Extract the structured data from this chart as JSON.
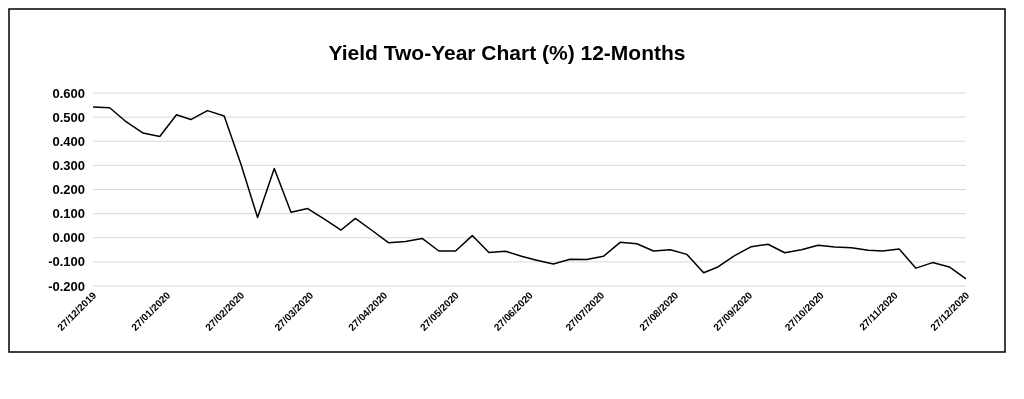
{
  "chart_data": {
    "type": "line",
    "title": "Yield Two-Year Chart (%) 12-Months",
    "x": [
      "2019-12-27",
      "2020-01-03",
      "2020-01-10",
      "2020-01-17",
      "2020-01-24",
      "2020-01-31",
      "2020-02-06",
      "2020-02-13",
      "2020-02-20",
      "2020-02-27",
      "2020-03-05",
      "2020-03-12",
      "2020-03-19",
      "2020-03-26",
      "2020-04-02",
      "2020-04-09",
      "2020-04-15",
      "2020-04-22",
      "2020-04-29",
      "2020-05-06",
      "2020-05-13",
      "2020-05-20",
      "2020-05-27",
      "2020-06-03",
      "2020-06-10",
      "2020-06-17",
      "2020-06-24",
      "2020-06-30",
      "2020-07-07",
      "2020-07-14",
      "2020-07-21",
      "2020-07-28",
      "2020-08-04",
      "2020-08-11",
      "2020-08-18",
      "2020-08-25",
      "2020-09-01",
      "2020-09-08",
      "2020-09-14",
      "2020-09-21",
      "2020-09-28",
      "2020-10-05",
      "2020-10-12",
      "2020-10-19",
      "2020-10-26",
      "2020-11-02",
      "2020-11-09",
      "2020-11-16",
      "2020-11-22",
      "2020-11-29",
      "2020-12-06",
      "2020-12-13",
      "2020-12-20",
      "2020-12-27"
    ],
    "series": [
      {
        "color": "#000000",
        "values": [
          0.542,
          0.539,
          0.48,
          0.434,
          0.42,
          0.51,
          0.49,
          0.527,
          0.505,
          0.306,
          0.084,
          0.287,
          0.106,
          0.121,
          0.077,
          0.032,
          0.08,
          0.03,
          -0.021,
          -0.016,
          -0.003,
          -0.055,
          -0.055,
          0.009,
          -0.061,
          -0.056,
          -0.078,
          -0.093,
          -0.109,
          -0.089,
          -0.09,
          -0.077,
          -0.019,
          -0.025,
          -0.055,
          -0.05,
          -0.069,
          -0.145,
          -0.121,
          -0.074,
          -0.037,
          -0.027,
          -0.062,
          -0.05,
          -0.031,
          -0.038,
          -0.041,
          -0.052,
          -0.055,
          -0.047,
          -0.126,
          -0.103,
          -0.121,
          -0.17
        ]
      }
    ],
    "xlim": [
      "2019-12-27",
      "2020-12-27"
    ],
    "xticks": [
      {
        "value": "2019-12-27",
        "label": "27/12/2019"
      },
      {
        "value": "2020-01-27",
        "label": "27/01/2020"
      },
      {
        "value": "2020-02-27",
        "label": "27/02/2020"
      },
      {
        "value": "2020-03-27",
        "label": "27/03/2020"
      },
      {
        "value": "2020-04-27",
        "label": "27/04/2020"
      },
      {
        "value": "2020-05-27",
        "label": "27/05/2020"
      },
      {
        "value": "2020-06-27",
        "label": "27/06/2020"
      },
      {
        "value": "2020-07-27",
        "label": "27/07/2020"
      },
      {
        "value": "2020-08-27",
        "label": "27/08/2020"
      },
      {
        "value": "2020-09-27",
        "label": "27/09/2020"
      },
      {
        "value": "2020-10-27",
        "label": "27/10/2020"
      },
      {
        "value": "2020-11-27",
        "label": "27/11/2020"
      },
      {
        "value": "2020-12-27",
        "label": "27/12/2020"
      }
    ],
    "ylim": [
      -0.2,
      0.6
    ],
    "yticks": [
      {
        "value": -0.2,
        "label": "-0.200"
      },
      {
        "value": -0.1,
        "label": "-0.100"
      },
      {
        "value": 0,
        "label": "0.000"
      },
      {
        "value": 0.1,
        "label": "0.100"
      },
      {
        "value": 0.2,
        "label": "0.200"
      },
      {
        "value": 0.3,
        "label": "0.300"
      },
      {
        "value": 0.4,
        "label": "0.400"
      },
      {
        "value": 0.5,
        "label": "0.500"
      },
      {
        "value": 0.6,
        "label": "0.600"
      }
    ],
    "grid": "y",
    "line_style": "solid",
    "marker": "none"
  }
}
